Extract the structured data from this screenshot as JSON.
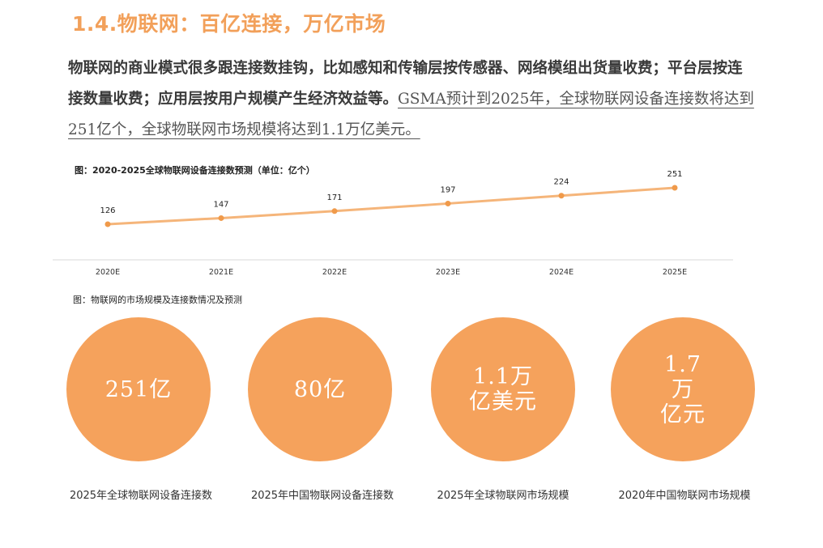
{
  "section_title": "1.4.物联网：百亿连接，万亿市场",
  "paragraph": {
    "bold_part": "物联网的商业模式很多跟连接数挂钩，比如感知和传输层按传感器、网络模组出货量收费；平台层按连接数量收费；应用层按用户规模产生经济效益等。",
    "underlined_part": "GSMA预计到2025年，全球物联网设备连接数将达到251亿个，全球物联网市场规模将达到1.1万亿美元。"
  },
  "chart_caption": "图：2020-2025全球物联网设备连接数预测（单位：亿个）",
  "chart_data": {
    "type": "line",
    "title": "图：2020-2025全球物联网设备连接数预测（单位：亿个）",
    "categories": [
      "2020E",
      "2021E",
      "2022E",
      "2023E",
      "2024E",
      "2025E"
    ],
    "values": [
      126,
      147,
      171,
      197,
      224,
      251
    ],
    "data_labels": [
      "126",
      "147",
      "171",
      "197",
      "224",
      "251"
    ],
    "xlabel": "",
    "ylabel": "",
    "grid": false,
    "color": "#f5b57a",
    "marker_color": "#f09a4a"
  },
  "stats_caption": "图：物联网的市场规模及连接数情况及预测",
  "stats": [
    {
      "value": "251亿",
      "label": "2025年全球物联网设备连接数"
    },
    {
      "value": "80亿",
      "label": "2025年中国物联网设备连接数"
    },
    {
      "value": "1.1万\n亿美元",
      "label": "2025年全球物联网市场规模"
    },
    {
      "value": "1.7\n万\n亿元",
      "label": "2020年中国物联网市场规模"
    }
  ],
  "colors": {
    "accent": "#f2a05a",
    "circle": "#f5a25c"
  }
}
